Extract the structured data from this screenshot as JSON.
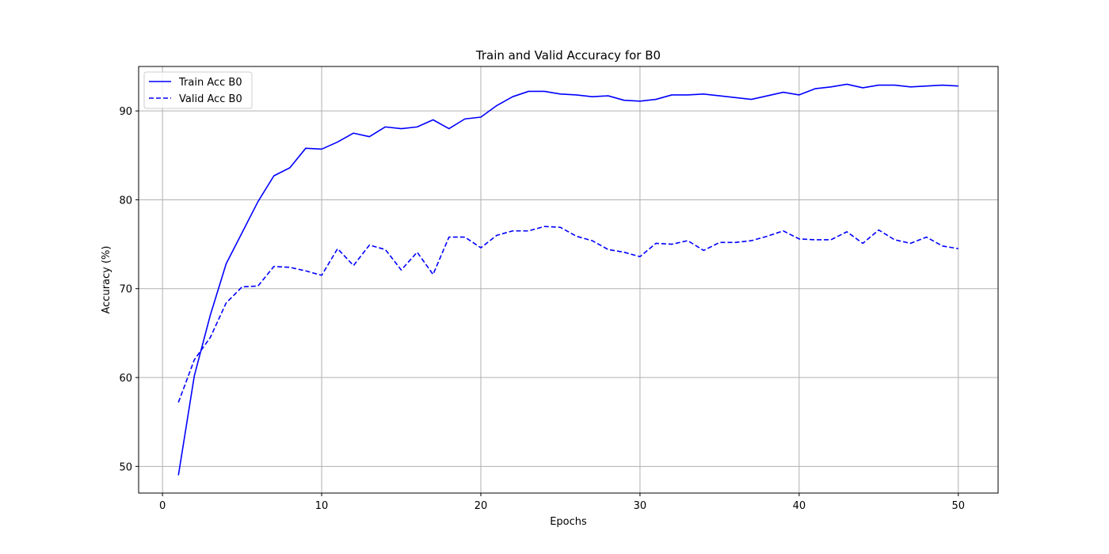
{
  "chart_data": {
    "type": "line",
    "title": "Train and Valid Accuracy for B0",
    "xlabel": "Epochs",
    "ylabel": "Accuracy (%)",
    "xlim": [
      -1.5,
      52.5
    ],
    "ylim": [
      47,
      95
    ],
    "xticks": [
      0,
      10,
      20,
      30,
      40,
      50
    ],
    "yticks": [
      50,
      60,
      70,
      80,
      90
    ],
    "grid": true,
    "legend_position": "top-left",
    "x": [
      1,
      2,
      3,
      4,
      5,
      6,
      7,
      8,
      9,
      10,
      11,
      12,
      13,
      14,
      15,
      16,
      17,
      18,
      19,
      20,
      21,
      22,
      23,
      24,
      25,
      26,
      27,
      28,
      29,
      30,
      31,
      32,
      33,
      34,
      35,
      36,
      37,
      38,
      39,
      40,
      41,
      42,
      43,
      44,
      45,
      46,
      47,
      48,
      49,
      50
    ],
    "series": [
      {
        "name": "Train Acc B0",
        "color": "#0000ff",
        "style": "solid",
        "values": [
          49.0,
          60.2,
          67.0,
          72.8,
          76.3,
          79.8,
          82.7,
          83.6,
          85.8,
          85.7,
          86.5,
          87.5,
          87.1,
          88.2,
          88.0,
          88.2,
          89.0,
          88.0,
          89.1,
          89.3,
          90.6,
          91.6,
          92.2,
          92.2,
          91.9,
          91.8,
          91.6,
          91.7,
          91.2,
          91.1,
          91.3,
          91.8,
          91.8,
          91.9,
          91.7,
          91.5,
          91.3,
          91.7,
          92.1,
          91.8,
          92.5,
          92.7,
          93.0,
          92.6,
          92.9,
          92.9,
          92.7,
          92.8,
          92.9,
          92.8
        ]
      },
      {
        "name": "Valid Acc B0",
        "color": "#0000ff",
        "style": "dashed",
        "values": [
          57.2,
          62.0,
          64.5,
          68.4,
          70.2,
          70.3,
          72.5,
          72.4,
          72.0,
          71.5,
          74.5,
          72.6,
          74.9,
          74.4,
          72.1,
          74.1,
          71.6,
          75.8,
          75.8,
          74.6,
          76.0,
          76.5,
          76.5,
          77.0,
          76.9,
          75.9,
          75.4,
          74.4,
          74.1,
          73.6,
          75.1,
          75.0,
          75.4,
          74.3,
          75.2,
          75.2,
          75.4,
          75.9,
          76.5,
          75.6,
          75.5,
          75.5,
          76.4,
          75.1,
          76.6,
          75.5,
          75.1,
          75.8,
          74.8,
          74.5
        ]
      }
    ]
  }
}
